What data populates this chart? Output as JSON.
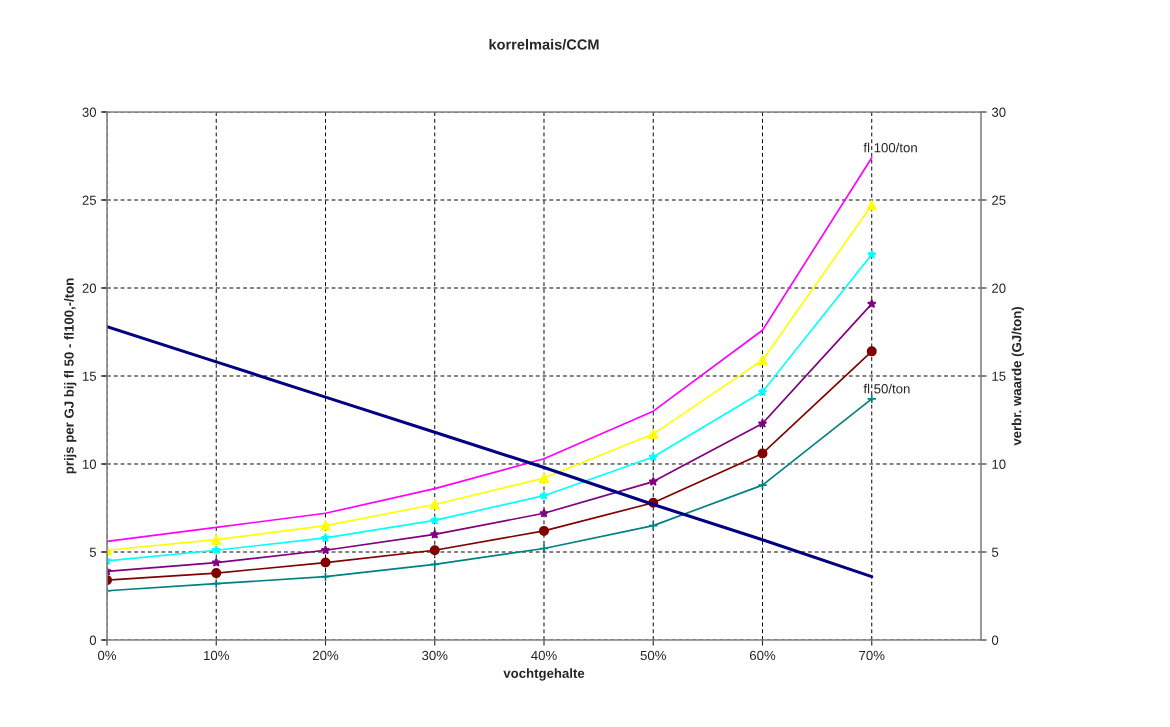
{
  "chart_data": {
    "type": "line",
    "title": "korrelmais/CCM",
    "xlabel": "vochtgehalte",
    "ylabel": "prijs per GJ bij fl 50 - fl100,-/ton",
    "y2label": "verbr. waarde (GJ/ton)",
    "x": [
      0,
      10,
      20,
      30,
      40,
      50,
      60,
      70
    ],
    "series": [
      {
        "color": "#ff00ff",
        "marker": "none",
        "values": [
          5.6,
          6.4,
          7.2,
          8.6,
          10.3,
          13.0,
          17.6,
          27.4
        ]
      },
      {
        "color": "#ffff00",
        "marker": "triangle",
        "values": [
          5.1,
          5.7,
          6.5,
          7.7,
          9.2,
          11.7,
          15.9,
          24.7
        ]
      },
      {
        "color": "#00ffff",
        "marker": "star",
        "values": [
          4.5,
          5.1,
          5.8,
          6.8,
          8.2,
          10.4,
          14.1,
          21.9
        ]
      },
      {
        "color": "#800080",
        "marker": "star",
        "values": [
          3.9,
          4.4,
          5.1,
          6.0,
          7.2,
          9.0,
          12.3,
          19.1
        ]
      },
      {
        "color": "#800000",
        "marker": "circle",
        "values": [
          3.4,
          3.8,
          4.4,
          5.1,
          6.2,
          7.8,
          10.6,
          16.4
        ]
      },
      {
        "color": "#008080",
        "marker": "cross",
        "values": [
          2.8,
          3.2,
          3.6,
          4.3,
          5.2,
          6.5,
          8.8,
          13.7
        ]
      },
      {
        "color": "#000080",
        "marker": "none",
        "axis": "y2",
        "values": [
          17.8,
          15.8,
          13.8,
          11.8,
          9.8,
          7.7,
          5.7,
          3.6
        ]
      }
    ],
    "annotations": [
      {
        "text": "fl 100/ton",
        "x": 70,
        "y": 27.4
      },
      {
        "text": "fl 50/ton",
        "x": 70,
        "y": 13.7
      }
    ],
    "xlim": [
      0,
      80
    ],
    "xticks": [
      {
        "value": 0,
        "label": "0%"
      },
      {
        "value": 10,
        "label": "10%"
      },
      {
        "value": 20,
        "label": "20%"
      },
      {
        "value": 30,
        "label": "30%"
      },
      {
        "value": 40,
        "label": "40%"
      },
      {
        "value": 50,
        "label": "50%"
      },
      {
        "value": 60,
        "label": "60%"
      },
      {
        "value": 70,
        "label": "70%"
      }
    ],
    "ylim": [
      0,
      30
    ],
    "yticks": [
      0,
      5,
      10,
      15,
      20,
      25,
      30
    ],
    "y2lim": [
      0,
      30
    ],
    "y2ticks": [
      0,
      5,
      10,
      15,
      20,
      25,
      30
    ],
    "grid": true,
    "legend": false,
    "line_style": "solid"
  }
}
